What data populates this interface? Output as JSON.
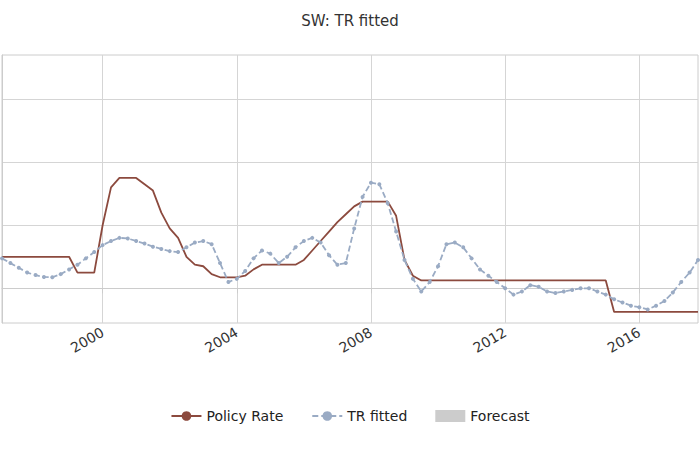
{
  "chart_data": {
    "type": "line",
    "title": "SW: TR fitted",
    "x": [
      1997,
      1997.25,
      1997.5,
      1997.75,
      1998,
      1998.25,
      1998.5,
      1998.75,
      1999,
      1999.25,
      1999.5,
      1999.75,
      2000,
      2000.25,
      2000.5,
      2000.75,
      2001,
      2001.25,
      2001.5,
      2001.75,
      2002,
      2002.25,
      2002.5,
      2002.75,
      2003,
      2003.25,
      2003.5,
      2003.75,
      2004,
      2004.25,
      2004.5,
      2004.75,
      2005,
      2005.25,
      2005.5,
      2005.75,
      2006,
      2006.25,
      2006.5,
      2006.75,
      2007,
      2007.25,
      2007.5,
      2007.75,
      2008,
      2008.25,
      2008.5,
      2008.75,
      2009,
      2009.25,
      2009.5,
      2009.75,
      2010,
      2010.25,
      2010.5,
      2010.75,
      2011,
      2011.25,
      2011.5,
      2011.75,
      2012,
      2012.25,
      2012.5,
      2012.75,
      2013,
      2013.25,
      2013.5,
      2013.75,
      2014,
      2014.25,
      2014.5,
      2014.75,
      2015,
      2015.25,
      2015.5,
      2015.75,
      2016,
      2016.25,
      2016.5,
      2016.75,
      2017,
      2017.25,
      2017.5,
      2017.75
    ],
    "series": [
      {
        "name": "Policy Rate",
        "type": "line",
        "color": "#8c4a3e",
        "line_style": "solid",
        "marker": "none",
        "values": [
          1.0,
          1.0,
          1.0,
          1.0,
          1.0,
          1.0,
          1.0,
          1.0,
          1.0,
          0.5,
          0.5,
          0.5,
          2.0,
          3.2,
          3.5,
          3.5,
          3.5,
          3.3,
          3.1,
          2.4,
          1.9,
          1.6,
          1.0,
          0.75,
          0.7,
          0.45,
          0.35,
          0.35,
          0.35,
          0.4,
          0.6,
          0.75,
          0.75,
          0.75,
          0.75,
          0.75,
          0.9,
          1.2,
          1.5,
          1.8,
          2.1,
          2.35,
          2.6,
          2.75,
          2.75,
          2.75,
          2.75,
          2.3,
          0.9,
          0.4,
          0.25,
          0.25,
          0.25,
          0.25,
          0.25,
          0.25,
          0.25,
          0.25,
          0.25,
          0.25,
          0.25,
          0.25,
          0.25,
          0.25,
          0.25,
          0.25,
          0.25,
          0.25,
          0.25,
          0.25,
          0.25,
          0.25,
          0.25,
          -0.75,
          -0.75,
          -0.75,
          -0.75,
          -0.75,
          -0.75,
          -0.75,
          -0.75,
          -0.75,
          -0.75,
          -0.75
        ]
      },
      {
        "name": "TR fitted",
        "type": "line",
        "color": "#9aabc4",
        "line_style": "dashed",
        "marker": "circle",
        "values": [
          0.95,
          0.8,
          0.65,
          0.5,
          0.42,
          0.36,
          0.35,
          0.45,
          0.6,
          0.75,
          0.95,
          1.15,
          1.37,
          1.5,
          1.6,
          1.58,
          1.5,
          1.42,
          1.32,
          1.25,
          1.18,
          1.15,
          1.3,
          1.45,
          1.5,
          1.4,
          0.8,
          0.2,
          0.3,
          0.55,
          0.95,
          1.2,
          1.1,
          0.8,
          1.0,
          1.3,
          1.5,
          1.6,
          1.45,
          1.05,
          0.75,
          0.8,
          1.9,
          2.9,
          3.35,
          3.3,
          2.7,
          1.8,
          0.9,
          0.3,
          -0.1,
          0.2,
          0.7,
          1.4,
          1.45,
          1.3,
          0.95,
          0.6,
          0.4,
          0.2,
          0.0,
          -0.2,
          -0.1,
          0.1,
          0.05,
          -0.1,
          -0.15,
          -0.1,
          -0.05,
          0.0,
          0.0,
          -0.1,
          -0.2,
          -0.35,
          -0.45,
          -0.55,
          -0.6,
          -0.67,
          -0.55,
          -0.4,
          -0.13,
          0.2,
          0.5,
          0.9
        ]
      },
      {
        "name": "Forecast",
        "type": "area",
        "color": "#cccccc",
        "values": [
          null,
          null,
          null,
          null,
          null,
          null,
          null,
          null,
          null,
          null,
          null,
          null,
          null,
          null,
          null,
          null,
          null,
          null,
          null,
          null,
          null,
          null,
          null,
          null,
          null,
          null,
          null,
          null,
          null,
          null,
          null,
          null,
          null,
          null,
          null,
          null,
          null,
          null,
          null,
          null,
          null,
          null,
          null,
          null,
          null,
          null,
          null,
          null,
          null,
          null,
          null,
          null,
          null,
          null,
          null,
          null,
          null,
          null,
          null,
          null,
          null,
          null,
          null,
          null,
          null,
          null,
          null,
          null,
          null,
          null,
          null,
          null,
          null,
          null,
          null,
          null,
          null,
          null,
          null,
          null,
          null,
          null,
          null,
          null
        ]
      }
    ],
    "xlim": [
      1997,
      2017.75
    ],
    "xticks": [
      2000,
      2004,
      2008,
      2012,
      2016
    ],
    "ylim": [
      -1.1,
      7.4
    ],
    "yticks": [
      0,
      2,
      4,
      6
    ],
    "tick_labels": "x",
    "grid": true,
    "legend": "bottom"
  }
}
